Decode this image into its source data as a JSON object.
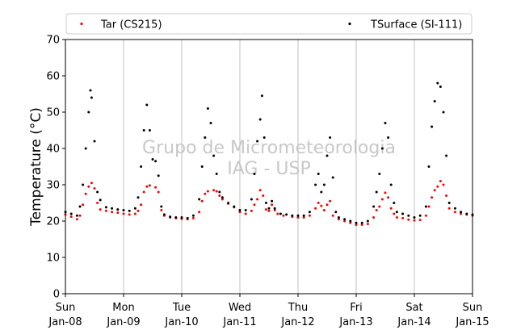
{
  "chart_data": {
    "type": "scatter",
    "title": "",
    "xlabel": "",
    "ylabel": "Temperature (°C)",
    "watermark": [
      "Grupo de Micrometeorologia",
      "IAG - USP"
    ],
    "ylim": [
      0,
      70
    ],
    "yticks": [
      0,
      10,
      20,
      30,
      40,
      50,
      60,
      70
    ],
    "xlim": [
      0,
      7
    ],
    "xticks": [
      {
        "day": "Sun",
        "date": "Jan-08",
        "x": 0
      },
      {
        "day": "Mon",
        "date": "Jan-09",
        "x": 1
      },
      {
        "day": "Tue",
        "date": "Jan-10",
        "x": 2
      },
      {
        "day": "Wed",
        "date": "Jan-11",
        "x": 3
      },
      {
        "day": "Thu",
        "date": "Jan-12",
        "x": 4
      },
      {
        "day": "Fri",
        "date": "Jan-13",
        "x": 5
      },
      {
        "day": "Sat",
        "date": "Jan-14",
        "x": 6
      },
      {
        "day": "Sun",
        "date": "Jan-15",
        "x": 7
      }
    ],
    "grid": "vertical",
    "legend_position": "top",
    "series": [
      {
        "name": "Tar (CS215)",
        "color": "#ff0000",
        "points": [
          [
            0.0,
            21.8
          ],
          [
            0.1,
            21.2
          ],
          [
            0.2,
            20.5
          ],
          [
            0.25,
            21.5
          ],
          [
            0.3,
            24.5
          ],
          [
            0.35,
            27.5
          ],
          [
            0.4,
            29.5
          ],
          [
            0.45,
            30.5
          ],
          [
            0.5,
            29.0
          ],
          [
            0.55,
            25.0
          ],
          [
            0.6,
            23.2
          ],
          [
            0.7,
            22.8
          ],
          [
            0.8,
            22.5
          ],
          [
            0.9,
            22.3
          ],
          [
            1.0,
            22.0
          ],
          [
            1.1,
            21.8
          ],
          [
            1.2,
            22.0
          ],
          [
            1.25,
            22.8
          ],
          [
            1.3,
            24.5
          ],
          [
            1.35,
            28.0
          ],
          [
            1.4,
            29.5
          ],
          [
            1.45,
            29.8
          ],
          [
            1.55,
            29.3
          ],
          [
            1.6,
            28.0
          ],
          [
            1.65,
            23.0
          ],
          [
            1.7,
            21.5
          ],
          [
            1.8,
            21.0
          ],
          [
            1.9,
            20.8
          ],
          [
            2.0,
            20.6
          ],
          [
            2.1,
            20.5
          ],
          [
            2.2,
            20.8
          ],
          [
            2.3,
            22.5
          ],
          [
            2.35,
            25.5
          ],
          [
            2.4,
            27.5
          ],
          [
            2.45,
            28.2
          ],
          [
            2.55,
            28.5
          ],
          [
            2.6,
            28.2
          ],
          [
            2.65,
            27.0
          ],
          [
            2.7,
            26.0
          ],
          [
            2.8,
            24.8
          ],
          [
            2.9,
            23.8
          ],
          [
            3.0,
            22.5
          ],
          [
            3.1,
            22.0
          ],
          [
            3.2,
            22.8
          ],
          [
            3.25,
            24.5
          ],
          [
            3.3,
            26.0
          ],
          [
            3.35,
            28.5
          ],
          [
            3.4,
            27.0
          ],
          [
            3.45,
            23.2
          ],
          [
            3.5,
            22.8
          ],
          [
            3.55,
            24.5
          ],
          [
            3.6,
            23.0
          ],
          [
            3.65,
            22.0
          ],
          [
            3.75,
            21.5
          ],
          [
            3.9,
            21.2
          ],
          [
            4.0,
            21.0
          ],
          [
            4.1,
            21.0
          ],
          [
            4.2,
            21.5
          ],
          [
            4.3,
            23.5
          ],
          [
            4.35,
            25.0
          ],
          [
            4.4,
            24.2
          ],
          [
            4.45,
            23.0
          ],
          [
            4.5,
            24.5
          ],
          [
            4.55,
            25.5
          ],
          [
            4.6,
            21.5
          ],
          [
            4.7,
            20.5
          ],
          [
            4.8,
            20.0
          ],
          [
            4.9,
            19.5
          ],
          [
            5.0,
            19.0
          ],
          [
            5.1,
            19.0
          ],
          [
            5.2,
            19.2
          ],
          [
            5.3,
            21.0
          ],
          [
            5.35,
            23.0
          ],
          [
            5.4,
            24.0
          ],
          [
            5.45,
            26.0
          ],
          [
            5.5,
            27.8
          ],
          [
            5.55,
            26.5
          ],
          [
            5.6,
            23.5
          ],
          [
            5.65,
            22.0
          ],
          [
            5.7,
            21.0
          ],
          [
            5.8,
            20.8
          ],
          [
            5.9,
            20.4
          ],
          [
            6.0,
            20.2
          ],
          [
            6.1,
            20.3
          ],
          [
            6.2,
            21.5
          ],
          [
            6.25,
            24.0
          ],
          [
            6.3,
            26.5
          ],
          [
            6.35,
            28.5
          ],
          [
            6.4,
            29.5
          ],
          [
            6.45,
            31.0
          ],
          [
            6.5,
            30.0
          ],
          [
            6.55,
            27.0
          ],
          [
            6.6,
            23.5
          ],
          [
            6.7,
            22.5
          ],
          [
            6.8,
            22.0
          ],
          [
            6.9,
            21.8
          ],
          [
            7.0,
            21.5
          ]
        ]
      },
      {
        "name": "TSurface (SI-111)",
        "color": "#000000",
        "points": [
          [
            0.0,
            22.5
          ],
          [
            0.1,
            22.0
          ],
          [
            0.2,
            21.5
          ],
          [
            0.25,
            24.0
          ],
          [
            0.3,
            30.0
          ],
          [
            0.35,
            40.0
          ],
          [
            0.4,
            50.0
          ],
          [
            0.43,
            56.0
          ],
          [
            0.45,
            54.0
          ],
          [
            0.5,
            42.0
          ],
          [
            0.55,
            28.0
          ],
          [
            0.6,
            25.8
          ],
          [
            0.7,
            23.8
          ],
          [
            0.8,
            23.5
          ],
          [
            0.9,
            23.2
          ],
          [
            1.0,
            23.0
          ],
          [
            1.1,
            22.8
          ],
          [
            1.2,
            23.5
          ],
          [
            1.25,
            26.5
          ],
          [
            1.3,
            35.0
          ],
          [
            1.35,
            45.0
          ],
          [
            1.4,
            52.0
          ],
          [
            1.45,
            45.0
          ],
          [
            1.5,
            37.0
          ],
          [
            1.55,
            36.5
          ],
          [
            1.6,
            32.5
          ],
          [
            1.65,
            24.0
          ],
          [
            1.7,
            21.8
          ],
          [
            1.8,
            21.2
          ],
          [
            1.9,
            21.0
          ],
          [
            2.0,
            21.0
          ],
          [
            2.1,
            20.8
          ],
          [
            2.2,
            21.5
          ],
          [
            2.3,
            26.0
          ],
          [
            2.35,
            35.0
          ],
          [
            2.4,
            43.0
          ],
          [
            2.45,
            51.0
          ],
          [
            2.5,
            47.0
          ],
          [
            2.55,
            38.0
          ],
          [
            2.6,
            33.0
          ],
          [
            2.65,
            28.0
          ],
          [
            2.7,
            26.5
          ],
          [
            2.8,
            25.0
          ],
          [
            2.9,
            24.0
          ],
          [
            3.0,
            23.0
          ],
          [
            3.1,
            23.0
          ],
          [
            3.2,
            26.0
          ],
          [
            3.25,
            33.0
          ],
          [
            3.3,
            42.0
          ],
          [
            3.35,
            48.0
          ],
          [
            3.38,
            54.5
          ],
          [
            3.42,
            43.0
          ],
          [
            3.45,
            25.0
          ],
          [
            3.5,
            23.5
          ],
          [
            3.55,
            25.5
          ],
          [
            3.6,
            23.5
          ],
          [
            3.7,
            22.0
          ],
          [
            3.8,
            21.8
          ],
          [
            3.9,
            21.5
          ],
          [
            4.0,
            21.5
          ],
          [
            4.1,
            21.5
          ],
          [
            4.2,
            22.5
          ],
          [
            4.3,
            30.0
          ],
          [
            4.35,
            33.0
          ],
          [
            4.4,
            28.0
          ],
          [
            4.45,
            30.0
          ],
          [
            4.5,
            38.0
          ],
          [
            4.55,
            43.0
          ],
          [
            4.6,
            32.0
          ],
          [
            4.65,
            22.5
          ],
          [
            4.7,
            21.0
          ],
          [
            4.8,
            20.5
          ],
          [
            4.9,
            20.0
          ],
          [
            5.0,
            19.5
          ],
          [
            5.1,
            19.5
          ],
          [
            5.2,
            20.0
          ],
          [
            5.3,
            24.0
          ],
          [
            5.35,
            28.0
          ],
          [
            5.4,
            33.0
          ],
          [
            5.45,
            40.0
          ],
          [
            5.5,
            47.0
          ],
          [
            5.55,
            43.0
          ],
          [
            5.6,
            30.0
          ],
          [
            5.65,
            25.0
          ],
          [
            5.7,
            22.5
          ],
          [
            5.8,
            22.0
          ],
          [
            5.9,
            21.5
          ],
          [
            6.0,
            21.0
          ],
          [
            6.1,
            21.5
          ],
          [
            6.2,
            24.0
          ],
          [
            6.25,
            35.0
          ],
          [
            6.3,
            46.0
          ],
          [
            6.35,
            53.0
          ],
          [
            6.4,
            58.0
          ],
          [
            6.45,
            57.0
          ],
          [
            6.5,
            50.0
          ],
          [
            6.55,
            38.0
          ],
          [
            6.6,
            25.0
          ],
          [
            6.7,
            23.5
          ],
          [
            6.8,
            22.5
          ],
          [
            6.9,
            22.0
          ],
          [
            7.0,
            21.8
          ]
        ]
      }
    ]
  }
}
